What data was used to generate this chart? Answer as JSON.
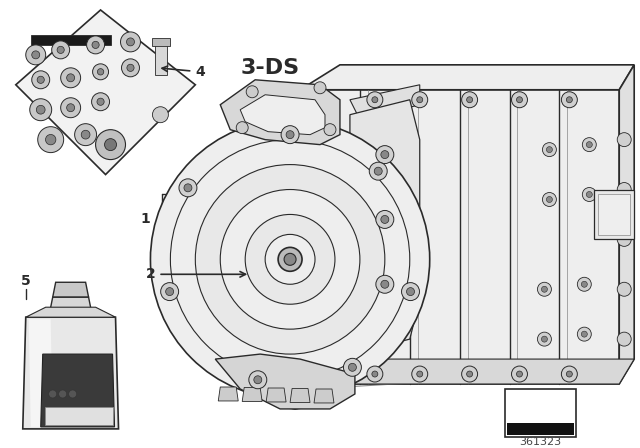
{
  "background_color": "#ffffff",
  "line_color": "#2a2a2a",
  "light_gray": "#cccccc",
  "mid_gray": "#888888",
  "dark_gray": "#444444",
  "very_light_gray": "#eeeeee",
  "diagram_number": "361323",
  "label_3ds": "3-DS",
  "label_3ds_fontsize": 16,
  "fig_width": 6.4,
  "fig_height": 4.48,
  "dpi": 100
}
